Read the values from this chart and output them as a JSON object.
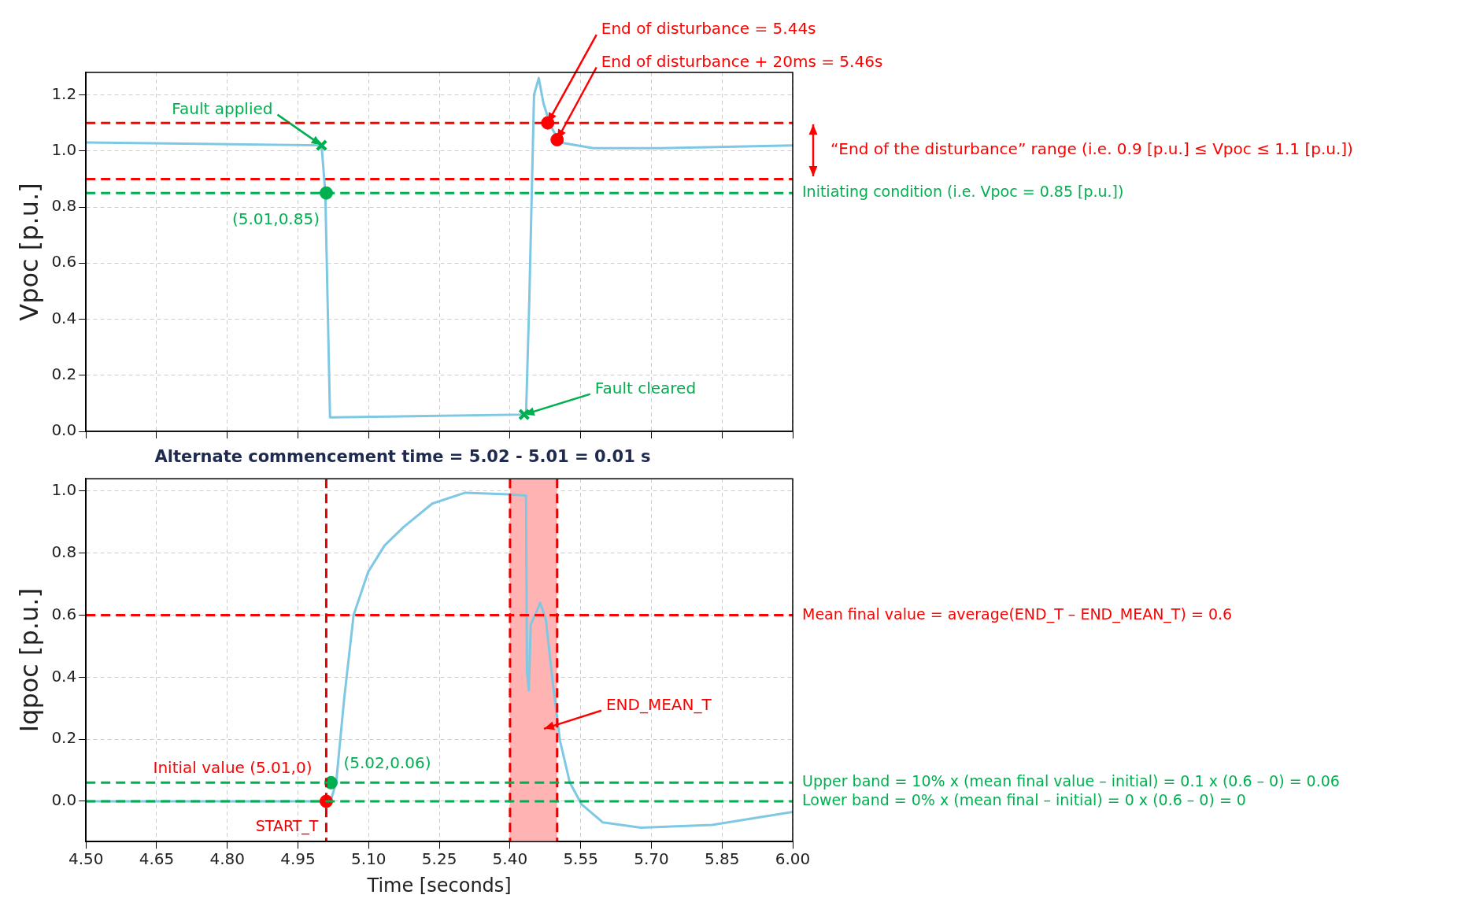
{
  "chart_data": [
    {
      "type": "line",
      "ylabel": "Vpoc [p.u.]",
      "xlim": [
        4.5,
        6.0
      ],
      "ylim": [
        0,
        1.28
      ],
      "xticks": [
        {
          "value": 4.5,
          "label": null
        },
        {
          "value": 4.65,
          "label": null
        },
        {
          "value": 4.8,
          "label": null
        },
        {
          "value": 4.95,
          "label": null
        },
        {
          "value": 5.1,
          "label": null
        },
        {
          "value": 5.25,
          "label": null
        },
        {
          "value": 5.4,
          "label": null
        },
        {
          "value": 5.55,
          "label": null
        },
        {
          "value": 5.7,
          "label": null
        },
        {
          "value": 5.85,
          "label": null
        },
        {
          "value": 6.0,
          "label": null
        }
      ],
      "yticks": [
        {
          "value": 0,
          "label": "0.0"
        },
        {
          "value": 0.2,
          "label": "0.2"
        },
        {
          "value": 0.4,
          "label": "0.4"
        },
        {
          "value": 0.6,
          "label": "0.6"
        },
        {
          "value": 0.8,
          "label": "0.8"
        },
        {
          "value": 1.0,
          "label": "1.0"
        },
        {
          "value": 1.2,
          "label": "1.2"
        }
      ],
      "tick_labels": "y",
      "grid": true,
      "series": [
        {
          "type": "line",
          "color": "#7ec8e3",
          "x": [
            4.5,
            5.0,
            5.008,
            5.018,
            5.02,
            5.434,
            5.441,
            5.451,
            5.461,
            5.471,
            5.486,
            5.506,
            5.577,
            5.72,
            6.0
          ],
          "values": [
            1.03,
            1.02,
            0.85,
            0.05,
            0.05,
            0.06,
            0.47,
            1.2,
            1.26,
            1.17,
            1.09,
            1.03,
            1.01,
            1.01,
            1.02
          ]
        },
        {
          "type": "scatter",
          "marker": "cross",
          "color": "#00b050",
          "x": [
            5.0,
            5.43
          ],
          "values": [
            1.02,
            0.06
          ]
        },
        {
          "type": "scatter",
          "marker": "circle",
          "color": "#00b050",
          "x": [
            5.01
          ],
          "values": [
            0.85
          ]
        },
        {
          "type": "scatter",
          "marker": "circle",
          "color": "#ff0000",
          "x": [
            5.48,
            5.5
          ],
          "values": [
            1.1,
            1.04
          ]
        }
      ],
      "ref_lines": [
        {
          "axis": "y",
          "value": 1.1,
          "color": "#ff0000",
          "line_style": "dashed"
        },
        {
          "axis": "y",
          "value": 0.9,
          "color": "#ff0000",
          "line_style": "dashed"
        },
        {
          "axis": "y",
          "value": 0.85,
          "color": "#00b050",
          "line_style": "dashed",
          "label": "Initiating condition (i.e. Vpoc = 0.85 [p.u.])"
        }
      ],
      "annotations": [
        {
          "text": "End of disturbance = 5.44s",
          "x": 5.48,
          "y": 1.1
        },
        {
          "text": "End of disturbance + 20ms = 5.46s",
          "x": 5.5,
          "y": 1.04
        },
        {
          "text": "Fault applied",
          "x": 5.0,
          "y": 1.02
        },
        {
          "text": "Fault cleared",
          "x": 5.43,
          "y": 0.06
        },
        {
          "text": "(5.01,0.85)",
          "x": 5.01,
          "y": 0.85
        },
        "“End of the disturbance” range (i.e. 0.9 [p.u.] ≤ Vpoc ≤ 1.1 [p.u.])"
      ]
    },
    {
      "type": "line",
      "title": "Alternate commencement time = 5.02 - 5.01 = 0.01 s",
      "xlabel": "Time [seconds]",
      "ylabel": "Iqpoc [p.u.]",
      "xlim": [
        4.5,
        6.0
      ],
      "ylim": [
        -0.13,
        1.04
      ],
      "xticks": [
        {
          "value": 4.5,
          "label": "4.50"
        },
        {
          "value": 4.65,
          "label": "4.65"
        },
        {
          "value": 4.8,
          "label": "4.80"
        },
        {
          "value": 4.95,
          "label": "4.95"
        },
        {
          "value": 5.1,
          "label": "5.10"
        },
        {
          "value": 5.25,
          "label": "5.25"
        },
        {
          "value": 5.4,
          "label": "5.40"
        },
        {
          "value": 5.55,
          "label": "5.55"
        },
        {
          "value": 5.7,
          "label": "5.70"
        },
        {
          "value": 5.85,
          "label": "5.85"
        },
        {
          "value": 6.0,
          "label": "6.00"
        }
      ],
      "yticks": [
        {
          "value": 0,
          "label": "0.0"
        },
        {
          "value": 0.2,
          "label": "0.2"
        },
        {
          "value": 0.4,
          "label": "0.4"
        },
        {
          "value": 0.6,
          "label": "0.6"
        },
        {
          "value": 0.8,
          "label": "0.8"
        },
        {
          "value": 1.0,
          "label": "1.0"
        }
      ],
      "grid": true,
      "series": [
        {
          "type": "line",
          "color": "#7ec8e3",
          "x": [
            4.5,
            5.003,
            5.021,
            5.031,
            5.048,
            5.068,
            5.099,
            5.134,
            5.174,
            5.235,
            5.305,
            5.396,
            5.434,
            5.436,
            5.44,
            5.444,
            5.456,
            5.464,
            5.476,
            5.491,
            5.506,
            5.527,
            5.552,
            5.597,
            5.678,
            5.829,
            6.0
          ],
          "values": [
            0,
            0,
            0.01,
            0.06,
            0.33,
            0.6,
            0.74,
            0.825,
            0.884,
            0.96,
            0.995,
            0.99,
            0.986,
            0.416,
            0.357,
            0.57,
            0.61,
            0.64,
            0.587,
            0.38,
            0.196,
            0.06,
            -0.01,
            -0.068,
            -0.085,
            -0.076,
            -0.034
          ]
        },
        {
          "type": "scatter",
          "marker": "circle",
          "color": "#ff0000",
          "x": [
            5.01
          ],
          "values": [
            0
          ]
        },
        {
          "type": "scatter",
          "marker": "circle",
          "color": "#00b050",
          "x": [
            5.02
          ],
          "values": [
            0.06
          ]
        }
      ],
      "bands": [
        {
          "axis": "x",
          "from": 5.4,
          "to": 5.5,
          "color": "#ffb3b3"
        }
      ],
      "ref_lines": [
        {
          "axis": "x",
          "value": 5.01,
          "color": "#e80000",
          "line_style": "dashed",
          "label": "START_T"
        },
        {
          "axis": "x",
          "value": 5.4,
          "color": "#e80000",
          "line_style": "dashed"
        },
        {
          "axis": "x",
          "value": 5.5,
          "color": "#e80000",
          "line_style": "dashed"
        },
        {
          "axis": "y",
          "value": 0.6,
          "color": "#ff0000",
          "line_style": "dashed",
          "label": "Mean final value = average(END_T – END_MEAN_T) = 0.6"
        },
        {
          "axis": "y",
          "value": 0.06,
          "color": "#00b050",
          "line_style": "dashed",
          "label": "Upper band = 10% x (mean final value – initial) = 0.1 x (0.6 – 0) = 0.06"
        },
        {
          "axis": "y",
          "value": 0,
          "color": "#00b050",
          "line_style": "dashed",
          "label": "Lower band = 0% x (mean final – initial) = 0 x (0.6 – 0) = 0"
        }
      ],
      "annotations": [
        {
          "text": "Initial value (5.01,0)",
          "x": 5.01,
          "y": 0
        },
        {
          "text": "(5.02,0.06)",
          "x": 5.02,
          "y": 0.06
        },
        "END_MEAN_T"
      ]
    }
  ]
}
